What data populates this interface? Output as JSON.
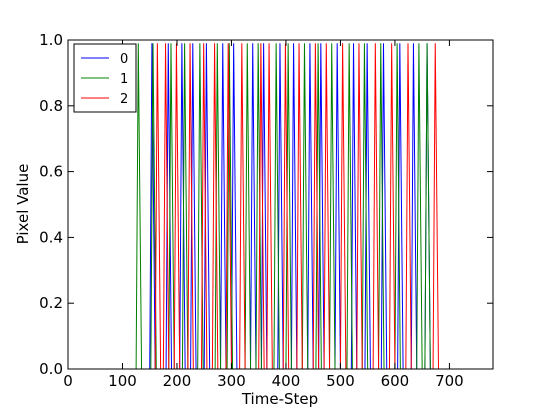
{
  "chart_data": {
    "type": "line",
    "xlabel": "Time-Step",
    "ylabel": "Pixel Value",
    "xlim": [
      0,
      780
    ],
    "ylim": [
      0,
      1
    ],
    "xticks": [
      0,
      100,
      200,
      300,
      400,
      500,
      600,
      700
    ],
    "yticks": [
      {
        "value": 0,
        "label": "0.0"
      },
      {
        "value": 0.2,
        "label": "0.2"
      },
      {
        "value": 0.4,
        "label": "0.4"
      },
      {
        "value": 0.6,
        "label": "0.6"
      },
      {
        "value": 0.8,
        "label": "0.8"
      },
      {
        "value": 1,
        "label": "1.0"
      }
    ],
    "legend": "upper left",
    "series": [
      {
        "name": "0",
        "color": "#0000ff",
        "x": [
          0,
          150,
          154,
          160,
          180,
          184,
          190,
          205,
          209,
          215,
          225,
          229,
          235,
          250,
          254,
          260,
          280,
          284,
          290,
          300,
          304,
          310,
          335,
          339,
          345,
          355,
          359,
          365,
          385,
          389,
          395,
          410,
          414,
          420,
          440,
          444,
          450,
          460,
          464,
          470,
          490,
          494,
          500,
          520,
          524,
          530,
          545,
          549,
          555,
          575,
          579,
          585,
          605,
          609,
          615,
          630,
          634,
          640,
          655,
          659,
          665,
          780
        ],
        "values": [
          0,
          0,
          0.99,
          0,
          0,
          0.99,
          0,
          0,
          0.99,
          0,
          0,
          0.99,
          0,
          0,
          0.99,
          0,
          0,
          0.99,
          0,
          0,
          0.99,
          0,
          0,
          0.99,
          0,
          0,
          0.99,
          0,
          0,
          0.99,
          0,
          0,
          0.99,
          0,
          0,
          0.99,
          0,
          0,
          0.99,
          0,
          0,
          0.99,
          0,
          0,
          0.99,
          0,
          0,
          0.99,
          0,
          0,
          0.99,
          0,
          0,
          0.99,
          0,
          0,
          0.99,
          0,
          0,
          0.99,
          0,
          0
        ]
      },
      {
        "name": "1",
        "color": "#008000",
        "x": [
          0,
          125,
          129,
          135,
          152,
          156,
          162,
          185,
          189,
          195,
          210,
          214,
          220,
          238,
          242,
          248,
          270,
          274,
          280,
          292,
          296,
          302,
          325,
          329,
          335,
          345,
          349,
          355,
          378,
          382,
          388,
          400,
          404,
          410,
          430,
          434,
          440,
          455,
          459,
          465,
          480,
          484,
          490,
          512,
          516,
          522,
          540,
          544,
          550,
          570,
          574,
          580,
          600,
          604,
          610,
          640,
          644,
          650,
          655,
          659,
          665,
          780
        ],
        "values": [
          0,
          0,
          0.99,
          0,
          0,
          0.99,
          0,
          0,
          0.99,
          0,
          0,
          0.99,
          0,
          0,
          0.99,
          0,
          0,
          0.99,
          0,
          0,
          0.99,
          0,
          0,
          0.99,
          0,
          0,
          0.99,
          0,
          0,
          0.99,
          0,
          0,
          0.99,
          0,
          0,
          0.99,
          0,
          0,
          0.99,
          0,
          0,
          0.99,
          0,
          0,
          0.99,
          0,
          0,
          0.99,
          0,
          0,
          0.99,
          0,
          0,
          0.99,
          0,
          0,
          0.99,
          0,
          0,
          0.99,
          0,
          0
        ]
      },
      {
        "name": "2",
        "color": "#ff0000",
        "x": [
          0,
          160,
          164,
          170,
          175,
          179,
          185,
          195,
          199,
          205,
          220,
          224,
          230,
          245,
          249,
          255,
          265,
          269,
          275,
          290,
          294,
          300,
          315,
          319,
          325,
          350,
          354,
          360,
          365,
          369,
          375,
          395,
          399,
          405,
          420,
          424,
          430,
          450,
          454,
          460,
          470,
          474,
          480,
          500,
          504,
          510,
          530,
          534,
          540,
          560,
          564,
          570,
          590,
          594,
          600,
          620,
          624,
          630,
          670,
          674,
          680,
          780
        ],
        "values": [
          0,
          0,
          0.99,
          0,
          0,
          0.99,
          0,
          0,
          0.99,
          0,
          0,
          0.99,
          0,
          0,
          0.99,
          0,
          0,
          0.99,
          0,
          0,
          0.99,
          0,
          0,
          0.99,
          0,
          0,
          0.99,
          0,
          0,
          0.99,
          0,
          0,
          0.99,
          0,
          0,
          0.99,
          0,
          0,
          0.99,
          0,
          0,
          0.99,
          0,
          0,
          0.99,
          0,
          0,
          0.99,
          0,
          0,
          0.99,
          0,
          0,
          0.99,
          0,
          0,
          0.99,
          0,
          0,
          0.99,
          0,
          0
        ]
      }
    ]
  }
}
